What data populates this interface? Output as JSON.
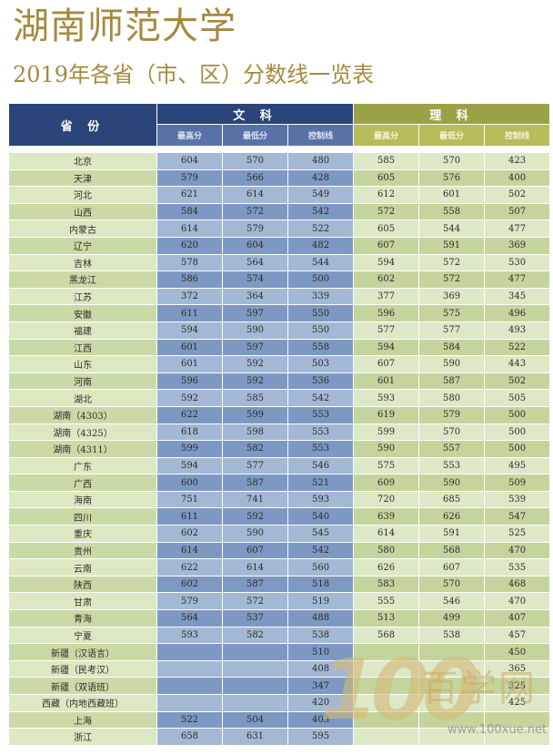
{
  "header": {
    "title": "湖南师范大学",
    "subtitle": "2019年各省（市、区）分数线一览表"
  },
  "table": {
    "province_header": "省 份",
    "wen_header": "文 科",
    "li_header": "理 科",
    "sub_headers": [
      "最高分",
      "最低分",
      "控制线"
    ],
    "rows": [
      {
        "province": "北京",
        "w": [
          "604",
          "570",
          "480"
        ],
        "l": [
          "585",
          "570",
          "423"
        ]
      },
      {
        "province": "天津",
        "w": [
          "579",
          "566",
          "428"
        ],
        "l": [
          "605",
          "576",
          "400"
        ]
      },
      {
        "province": "河北",
        "w": [
          "621",
          "614",
          "549"
        ],
        "l": [
          "612",
          "601",
          "502"
        ]
      },
      {
        "province": "山西",
        "w": [
          "584",
          "572",
          "542"
        ],
        "l": [
          "572",
          "558",
          "507"
        ]
      },
      {
        "province": "内蒙古",
        "w": [
          "614",
          "579",
          "522"
        ],
        "l": [
          "605",
          "544",
          "477"
        ]
      },
      {
        "province": "辽宁",
        "w": [
          "620",
          "604",
          "482"
        ],
        "l": [
          "607",
          "591",
          "369"
        ]
      },
      {
        "province": "吉林",
        "w": [
          "578",
          "564",
          "544"
        ],
        "l": [
          "594",
          "572",
          "530"
        ]
      },
      {
        "province": "黑龙江",
        "w": [
          "586",
          "574",
          "500"
        ],
        "l": [
          "602",
          "572",
          "477"
        ]
      },
      {
        "province": "江苏",
        "w": [
          "372",
          "364",
          "339"
        ],
        "l": [
          "377",
          "369",
          "345"
        ]
      },
      {
        "province": "安徽",
        "w": [
          "611",
          "597",
          "550"
        ],
        "l": [
          "596",
          "575",
          "496"
        ]
      },
      {
        "province": "福建",
        "w": [
          "594",
          "590",
          "550"
        ],
        "l": [
          "577",
          "577",
          "493"
        ]
      },
      {
        "province": "江西",
        "w": [
          "601",
          "597",
          "558"
        ],
        "l": [
          "594",
          "584",
          "522"
        ]
      },
      {
        "province": "山东",
        "w": [
          "601",
          "592",
          "503"
        ],
        "l": [
          "607",
          "590",
          "443"
        ]
      },
      {
        "province": "河南",
        "w": [
          "596",
          "592",
          "536"
        ],
        "l": [
          "601",
          "587",
          "502"
        ]
      },
      {
        "province": "湖北",
        "w": [
          "592",
          "585",
          "542"
        ],
        "l": [
          "593",
          "580",
          "505"
        ]
      },
      {
        "province": "湖南（4303）",
        "w": [
          "622",
          "599",
          "553"
        ],
        "l": [
          "619",
          "579",
          "500"
        ]
      },
      {
        "province": "湖南（4325）",
        "w": [
          "618",
          "598",
          "553"
        ],
        "l": [
          "599",
          "570",
          "500"
        ]
      },
      {
        "province": "湖南（4311）",
        "w": [
          "599",
          "582",
          "553"
        ],
        "l": [
          "590",
          "557",
          "500"
        ]
      },
      {
        "province": "广东",
        "w": [
          "594",
          "577",
          "546"
        ],
        "l": [
          "575",
          "553",
          "495"
        ]
      },
      {
        "province": "广西",
        "w": [
          "600",
          "587",
          "521"
        ],
        "l": [
          "609",
          "590",
          "509"
        ]
      },
      {
        "province": "海南",
        "w": [
          "751",
          "741",
          "593"
        ],
        "l": [
          "720",
          "685",
          "539"
        ]
      },
      {
        "province": "四川",
        "w": [
          "611",
          "592",
          "540"
        ],
        "l": [
          "639",
          "626",
          "547"
        ]
      },
      {
        "province": "重庆",
        "w": [
          "602",
          "590",
          "545"
        ],
        "l": [
          "614",
          "591",
          "525"
        ]
      },
      {
        "province": "贵州",
        "w": [
          "614",
          "607",
          "542"
        ],
        "l": [
          "580",
          "568",
          "470"
        ]
      },
      {
        "province": "云南",
        "w": [
          "622",
          "614",
          "560"
        ],
        "l": [
          "626",
          "607",
          "535"
        ]
      },
      {
        "province": "陕西",
        "w": [
          "602",
          "587",
          "518"
        ],
        "l": [
          "583",
          "570",
          "468"
        ]
      },
      {
        "province": "甘肃",
        "w": [
          "579",
          "572",
          "519"
        ],
        "l": [
          "555",
          "546",
          "470"
        ]
      },
      {
        "province": "青海",
        "w": [
          "564",
          "537",
          "488"
        ],
        "l": [
          "513",
          "499",
          "407"
        ]
      },
      {
        "province": "宁夏",
        "w": [
          "593",
          "582",
          "538"
        ],
        "l": [
          "568",
          "538",
          "457"
        ]
      },
      {
        "province": "新疆（汉语言）",
        "w": [
          "",
          "",
          "510"
        ],
        "l": [
          "",
          "",
          "450"
        ]
      },
      {
        "province": "新疆（民考汉）",
        "w": [
          "",
          "",
          "408"
        ],
        "l": [
          "",
          "",
          "365"
        ]
      },
      {
        "province": "新疆（双语班）",
        "w": [
          "",
          "",
          "347"
        ],
        "l": [
          "",
          "",
          "325"
        ]
      },
      {
        "province": "西藏（内地西藏班）",
        "w": [
          "",
          "",
          "420"
        ],
        "l": [
          "",
          "",
          "425"
        ]
      },
      {
        "province": "上海",
        "w": [
          "522",
          "504",
          "403"
        ],
        "l": [
          "",
          "",
          ""
        ]
      },
      {
        "province": "浙江",
        "w": [
          "658",
          "631",
          "595"
        ],
        "l": [
          "",
          "",
          ""
        ]
      }
    ]
  },
  "watermark": {
    "digits": "100",
    "text": "百学网",
    "url": "www.100xue.net"
  },
  "colors": {
    "title": "#a6893f",
    "wen_header": "#2b457a",
    "li_header": "#9aa248"
  }
}
